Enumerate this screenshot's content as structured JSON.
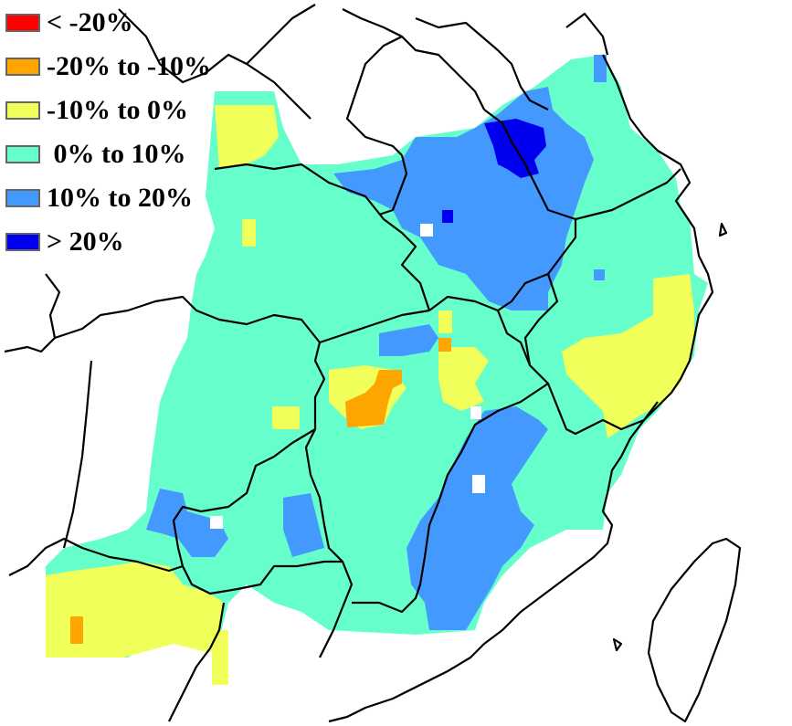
{
  "legend": {
    "items": [
      {
        "label": "< -20%",
        "color": "#FF0000"
      },
      {
        "label": "-20% to -10%",
        "color": "#FFA500"
      },
      {
        "label": "-10% to 0%",
        "color": "#F0FF5A"
      },
      {
        "label": " 0% to 10%",
        "color": "#66FFCC"
      },
      {
        "label": "10% to 20%",
        "color": "#4499FF"
      },
      {
        "label": "> 20%",
        "color": "#0000EE"
      }
    ]
  },
  "map": {
    "background": "#FFFFFF",
    "boundary_color": "#000000",
    "classes_shown": [
      "-20% to -10%",
      "-10% to 0%",
      " 0% to 10%",
      "10% to 20%",
      "> 20%"
    ]
  }
}
